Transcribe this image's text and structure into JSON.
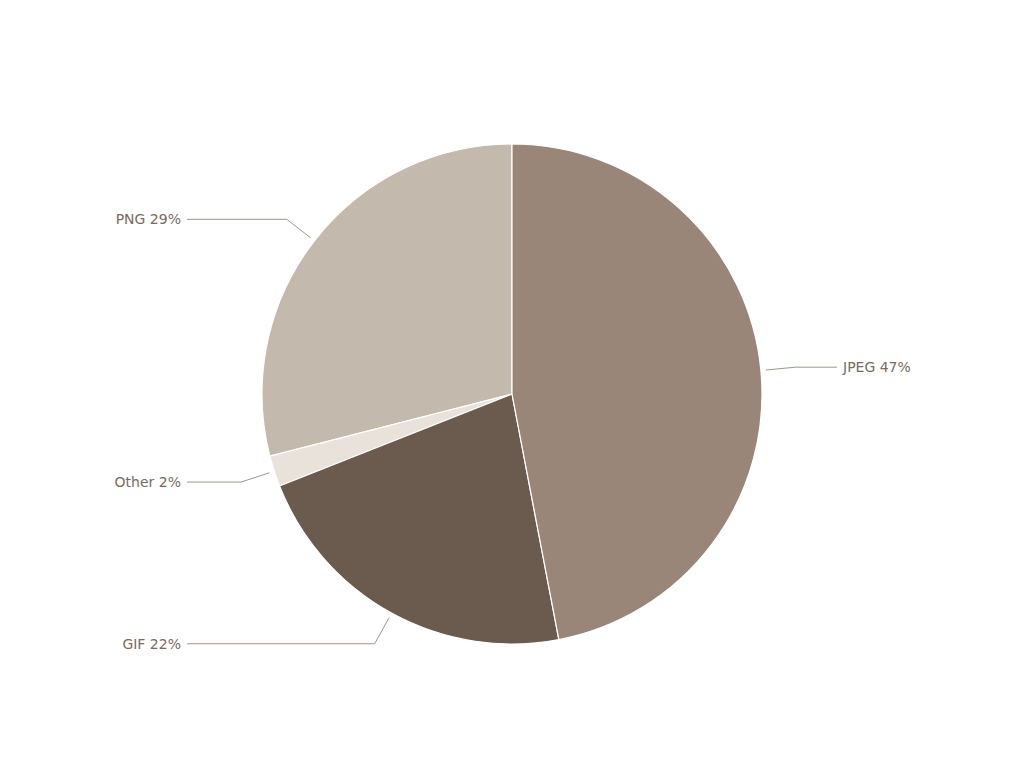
{
  "chart_data": {
    "type": "pie",
    "categories": [
      "PNG 29%",
      "Other 2%",
      "GIF 22%",
      "JPEG 47%"
    ],
    "values": [
      29,
      2,
      22,
      47
    ],
    "colors": [
      "#c4b9ad",
      "#e8e2db",
      "#6b5a4e",
      "#998678"
    ]
  }
}
